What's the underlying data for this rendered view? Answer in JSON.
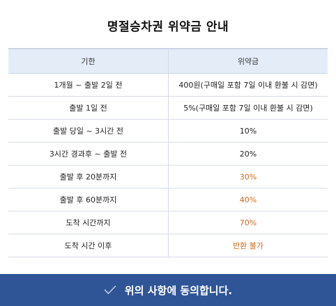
{
  "title": "명절승차권 위약금 안내",
  "table": {
    "headers": [
      "기한",
      "위약금"
    ],
    "rows": [
      {
        "period": "1개월 ~ 출발 2일 전",
        "fee": "400원(구매일 포함 7일 이내 환불 시 감면)",
        "highlight": false
      },
      {
        "period": "출발 1일 전",
        "fee": "5%(구매일 포함 7일 이내 환불 시 감면)",
        "highlight": false
      },
      {
        "period": "출발 당일 ~ 3시간 전",
        "fee": "10%",
        "highlight": false
      },
      {
        "period": "3시간 경과후 ~ 출발 전",
        "fee": "20%",
        "highlight": false
      },
      {
        "period": "출발 후 20분까지",
        "fee": "30%",
        "highlight": true
      },
      {
        "period": "출발 후 60분까지",
        "fee": "40%",
        "highlight": true
      },
      {
        "period": "도착 시간까지",
        "fee": "70%",
        "highlight": true
      },
      {
        "period": "도착 시간 이후",
        "fee": "반환 불가",
        "highlight": true
      }
    ]
  },
  "agree_button": {
    "label": "위의 사항에 동의합니다.",
    "icon": "check-icon"
  },
  "colors": {
    "header_bg": "#e4edf7",
    "highlight_text": "#d2691e",
    "button_bg": "#2f5597"
  }
}
